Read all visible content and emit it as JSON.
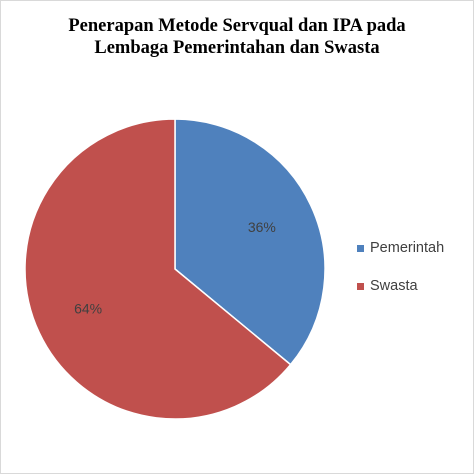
{
  "chart_data": {
    "type": "pie",
    "title_lines": [
      "Penerapan Metode Servqual dan IPA pada",
      "Lembaga Pemerintahan dan Swasta"
    ],
    "slices": [
      {
        "label": "Pemerintah",
        "value": 36,
        "display": "36%",
        "color": "#4f81bd"
      },
      {
        "label": "Swasta",
        "value": 64,
        "display": "64%",
        "color": "#c0504d"
      }
    ],
    "start_angle": "12 o'clock, clockwise",
    "legend_position": "right"
  }
}
